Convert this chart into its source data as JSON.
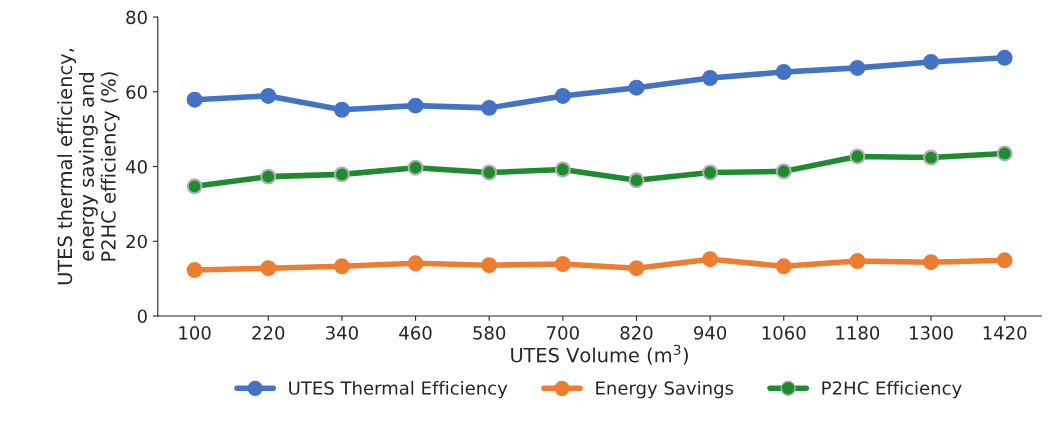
{
  "chart_data": {
    "type": "line",
    "xlabel": "UTES Volume (m$^{3}$)",
    "ylabel": "UTES thermal efficiency,\nenergy savings and\nP2HC efficiency (%)",
    "categories": [
      "100",
      "220",
      "340",
      "460",
      "580",
      "700",
      "820",
      "940",
      "1060",
      "1180",
      "1300",
      "1420"
    ],
    "series": [
      {
        "name": "UTES Thermal Efficiency",
        "color": "#4472c4",
        "values": [
          57.9,
          58.9,
          55.2,
          56.3,
          55.7,
          58.9,
          61.1,
          63.7,
          65.3,
          66.4,
          68.0,
          69.1
        ]
      },
      {
        "name": "Energy Savings",
        "color": "#ed7d31",
        "values": [
          12.3,
          12.8,
          13.3,
          14.1,
          13.6,
          13.9,
          12.8,
          15.2,
          13.3,
          14.7,
          14.4,
          14.9
        ]
      },
      {
        "name": "P2HC Efficiency",
        "color": "#1e8c2e",
        "values": [
          34.7,
          37.3,
          37.9,
          39.7,
          38.4,
          39.2,
          36.3,
          38.4,
          38.7,
          42.7,
          42.4,
          43.5
        ]
      }
    ],
    "ylim": [
      0,
      80
    ],
    "yticks": [
      0,
      20,
      40,
      60,
      80
    ],
    "grid": false,
    "legend": "bottom",
    "marker": "circle",
    "line_style": "solid"
  }
}
